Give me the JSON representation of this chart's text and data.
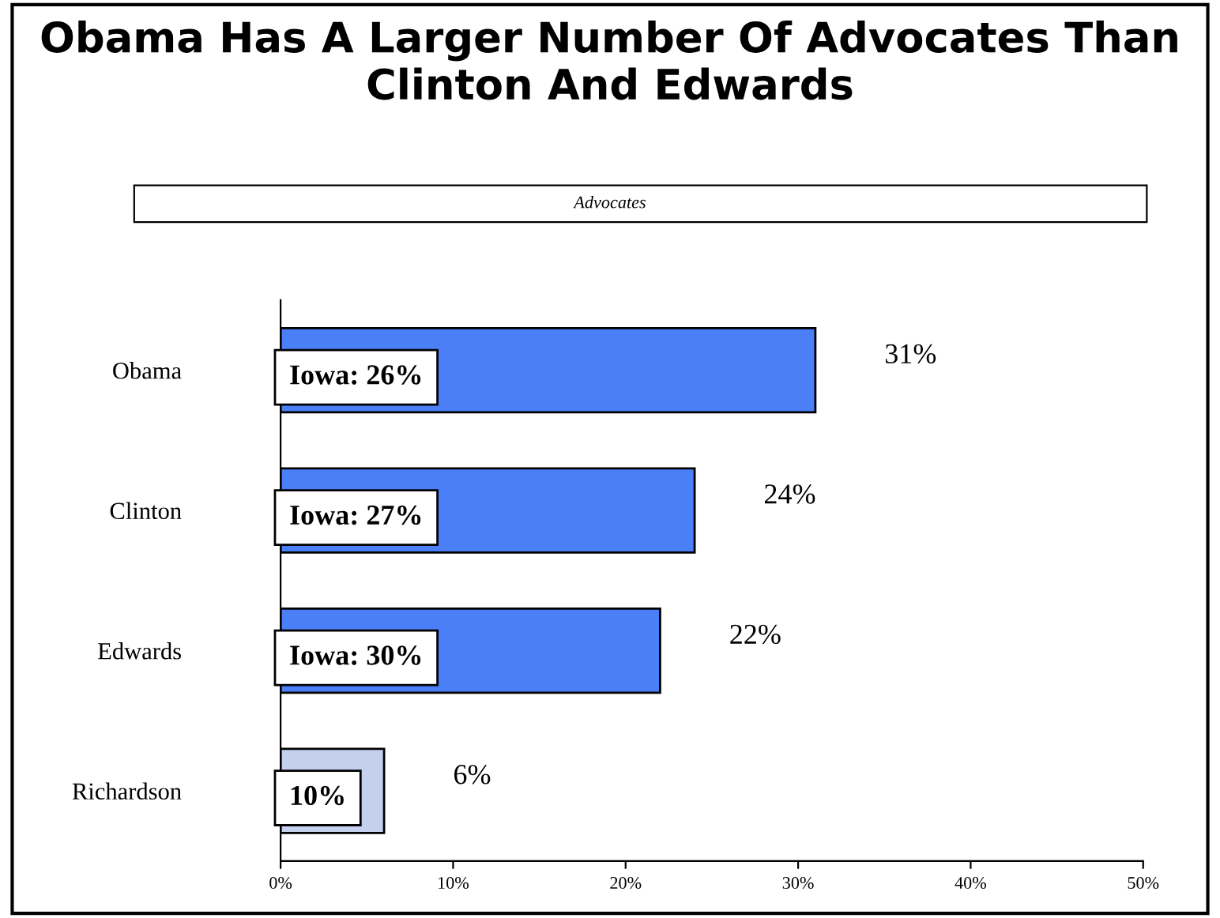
{
  "chart_data": {
    "type": "bar",
    "orientation": "horizontal",
    "title": "Obama Has A Larger Number Of Advocates Than Clinton And Edwards",
    "subtitle": "Advocates",
    "categories": [
      "Obama",
      "Clinton",
      "Edwards",
      "Richardson"
    ],
    "values": [
      31,
      24,
      22,
      6
    ],
    "colors": [
      "#4a7ff8",
      "#4a7ff8",
      "#4a7ff8",
      "#c4d0ee"
    ],
    "value_labels": [
      "31%",
      "24%",
      "22%",
      "6%"
    ],
    "annotations": [
      "Iowa: 26%",
      "Iowa: 27%",
      "Iowa: 30%",
      "10%"
    ],
    "xlim": [
      0,
      50
    ],
    "xticks": [
      {
        "value": 0,
        "label": "0%"
      },
      {
        "value": 10,
        "label": "10%"
      },
      {
        "value": 20,
        "label": "20%"
      },
      {
        "value": 30,
        "label": "30%"
      },
      {
        "value": 40,
        "label": "40%"
      },
      {
        "value": 50,
        "label": "50%"
      }
    ],
    "grid": false,
    "legend": false
  }
}
